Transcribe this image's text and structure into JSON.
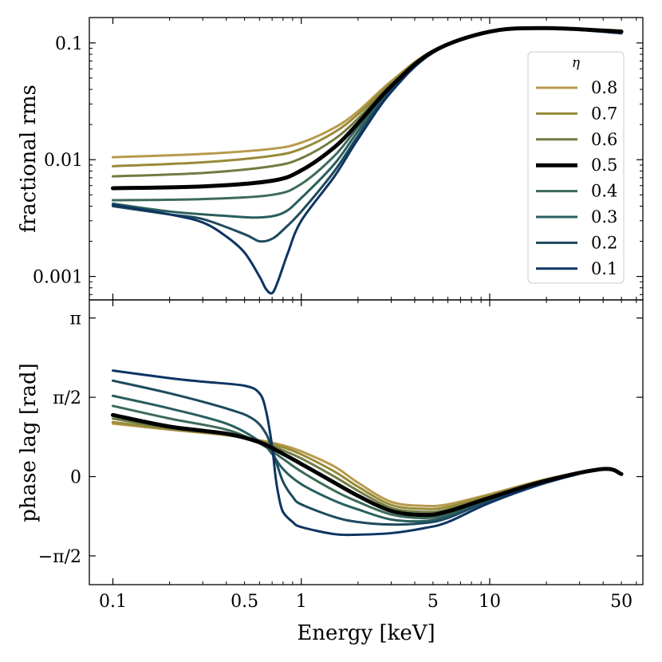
{
  "chart_data": [
    {
      "type": "line",
      "panel": "top",
      "xscale": "log",
      "yscale": "log",
      "xlim": [
        0.075,
        65
      ],
      "ylim": [
        0.00063,
        0.165
      ],
      "ylabel": "fractional rms",
      "yticks": [
        {
          "value": 0.001,
          "label": "0.001"
        },
        {
          "value": 0.01,
          "label": "0.01"
        },
        {
          "value": 0.1,
          "label": "0.1"
        }
      ],
      "legend": {
        "title": "η",
        "position": "right"
      },
      "series": [
        {
          "name": "0.8",
          "color": "#b89a4c",
          "x": [
            0.1,
            0.3,
            0.7,
            1,
            1.5,
            2,
            3,
            5,
            10,
            20,
            50
          ],
          "y": [
            0.0105,
            0.0112,
            0.0124,
            0.014,
            0.0188,
            0.026,
            0.047,
            0.086,
            0.125,
            0.134,
            0.128
          ]
        },
        {
          "name": "0.7",
          "color": "#988a38",
          "x": [
            0.1,
            0.3,
            0.7,
            1,
            1.5,
            2,
            3,
            5,
            10,
            20,
            50
          ],
          "y": [
            0.0088,
            0.0095,
            0.0108,
            0.0124,
            0.0172,
            0.0245,
            0.0455,
            0.0855,
            0.125,
            0.134,
            0.127
          ]
        },
        {
          "name": "0.6",
          "color": "#707c42",
          "x": [
            0.1,
            0.3,
            0.7,
            1,
            1.5,
            2,
            3,
            5,
            10,
            20,
            50
          ],
          "y": [
            0.0072,
            0.0077,
            0.0088,
            0.0103,
            0.015,
            0.0225,
            0.044,
            0.085,
            0.125,
            0.134,
            0.126
          ]
        },
        {
          "name": "0.5",
          "color": "#000000",
          "x": [
            0.1,
            0.3,
            0.7,
            1,
            1.5,
            2,
            3,
            5,
            10,
            20,
            50
          ],
          "y": [
            0.0057,
            0.0059,
            0.0066,
            0.0081,
            0.0128,
            0.0205,
            0.0425,
            0.0845,
            0.125,
            0.134,
            0.125
          ]
        },
        {
          "name": "0.4",
          "color": "#3c6a5a",
          "x": [
            0.1,
            0.3,
            0.7,
            1,
            1.5,
            2,
            3,
            5,
            10,
            20,
            50
          ],
          "y": [
            0.0045,
            0.0046,
            0.005,
            0.0062,
            0.0108,
            0.019,
            0.041,
            0.084,
            0.125,
            0.134,
            0.124
          ]
        },
        {
          "name": "0.3",
          "color": "#2a5e5e",
          "x": [
            0.1,
            0.2,
            0.4,
            0.6,
            0.8,
            1,
            1.5,
            2,
            3,
            5,
            10,
            20,
            50
          ],
          "y": [
            0.0042,
            0.0036,
            0.0033,
            0.0032,
            0.0035,
            0.0047,
            0.0092,
            0.0175,
            0.04,
            0.0835,
            0.125,
            0.134,
            0.123
          ]
        },
        {
          "name": "0.2",
          "color": "#1d4a5e",
          "x": [
            0.1,
            0.2,
            0.3,
            0.5,
            0.6,
            0.7,
            0.8,
            1,
            1.5,
            2,
            3,
            5,
            10,
            20,
            50
          ],
          "y": [
            0.004,
            0.0034,
            0.0031,
            0.0023,
            0.002,
            0.0021,
            0.0025,
            0.0036,
            0.008,
            0.016,
            0.039,
            0.083,
            0.125,
            0.134,
            0.122
          ]
        },
        {
          "name": "0.1",
          "color": "#0e3462",
          "x": [
            0.1,
            0.2,
            0.3,
            0.4,
            0.5,
            0.6,
            0.65,
            0.7,
            0.75,
            0.85,
            1,
            1.5,
            2,
            3,
            5,
            10,
            20,
            50
          ],
          "y": [
            0.0041,
            0.0034,
            0.0029,
            0.0022,
            0.0016,
            0.001,
            0.00078,
            0.00072,
            0.0009,
            0.0016,
            0.003,
            0.0072,
            0.015,
            0.038,
            0.0825,
            0.125,
            0.134,
            0.121
          ]
        }
      ]
    },
    {
      "type": "line",
      "panel": "bottom",
      "xscale": "log",
      "yscale": "linear",
      "xlim": [
        0.075,
        65
      ],
      "ylim": [
        -2.14,
        3.5
      ],
      "xlabel": "Energy [keV]",
      "ylabel": "phase lag [rad]",
      "xticks": [
        {
          "value": 0.1,
          "label": "0.1"
        },
        {
          "value": 0.5,
          "label": "0.5"
        },
        {
          "value": 1,
          "label": "1"
        },
        {
          "value": 5,
          "label": "5"
        },
        {
          "value": 10,
          "label": "10"
        },
        {
          "value": 50,
          "label": "50"
        }
      ],
      "yticks": [
        {
          "value": -1.5708,
          "label": "−π/2"
        },
        {
          "value": 0,
          "label": "0"
        },
        {
          "value": 1.5708,
          "label": "π/2"
        },
        {
          "value": 3.1416,
          "label": "π"
        }
      ],
      "series": [
        {
          "name": "0.8",
          "color": "#b89a4c",
          "x": [
            0.1,
            0.2,
            0.4,
            0.6,
            0.8,
            1,
            1.5,
            2,
            3,
            4.5,
            6,
            10,
            20,
            40,
            50
          ],
          "y": [
            1.05,
            0.93,
            0.82,
            0.72,
            0.62,
            0.5,
            0.2,
            -0.12,
            -0.5,
            -0.58,
            -0.55,
            -0.35,
            -0.05,
            0.15,
            0.05
          ]
        },
        {
          "name": "0.7",
          "color": "#988a38",
          "x": [
            0.1,
            0.2,
            0.4,
            0.6,
            0.8,
            1,
            1.5,
            2,
            3,
            4.5,
            6,
            10,
            20,
            40,
            50
          ],
          "y": [
            1.08,
            0.94,
            0.83,
            0.71,
            0.58,
            0.44,
            0.1,
            -0.2,
            -0.56,
            -0.64,
            -0.6,
            -0.37,
            -0.06,
            0.15,
            0.05
          ]
        },
        {
          "name": "0.6",
          "color": "#707c42",
          "x": [
            0.1,
            0.2,
            0.4,
            0.6,
            0.8,
            1,
            1.5,
            2,
            3,
            4.5,
            6,
            10,
            20,
            40,
            50
          ],
          "y": [
            1.15,
            0.96,
            0.84,
            0.7,
            0.52,
            0.36,
            0.0,
            -0.28,
            -0.62,
            -0.7,
            -0.65,
            -0.4,
            -0.07,
            0.15,
            0.05
          ]
        },
        {
          "name": "0.5",
          "color": "#000000",
          "x": [
            0.1,
            0.2,
            0.4,
            0.6,
            0.8,
            1,
            1.5,
            2,
            3,
            4.5,
            6,
            10,
            20,
            40,
            50
          ],
          "y": [
            1.22,
            0.99,
            0.85,
            0.68,
            0.45,
            0.25,
            -0.12,
            -0.38,
            -0.68,
            -0.76,
            -0.69,
            -0.42,
            -0.08,
            0.15,
            0.05
          ]
        },
        {
          "name": "0.4",
          "color": "#3c6a5a",
          "x": [
            0.1,
            0.2,
            0.4,
            0.6,
            0.8,
            1,
            1.5,
            2,
            3,
            4.5,
            6,
            10,
            20,
            40,
            50
          ],
          "y": [
            1.4,
            1.15,
            0.93,
            0.66,
            0.35,
            0.1,
            -0.28,
            -0.5,
            -0.75,
            -0.82,
            -0.74,
            -0.44,
            -0.09,
            0.15,
            0.05
          ]
        },
        {
          "name": "0.3",
          "color": "#2a5e5e",
          "x": [
            0.1,
            0.2,
            0.4,
            0.6,
            0.7,
            0.8,
            1,
            1.5,
            2,
            3,
            4.5,
            6,
            10,
            20,
            40,
            50
          ],
          "y": [
            1.6,
            1.35,
            1.05,
            0.7,
            0.45,
            0.15,
            -0.15,
            -0.48,
            -0.65,
            -0.85,
            -0.88,
            -0.78,
            -0.46,
            -0.1,
            0.15,
            0.05
          ]
        },
        {
          "name": "0.2",
          "color": "#1d4a5e",
          "x": [
            0.1,
            0.2,
            0.4,
            0.55,
            0.65,
            0.72,
            0.8,
            0.9,
            1,
            1.5,
            2,
            3,
            4.5,
            6,
            10,
            20,
            40,
            50
          ],
          "y": [
            1.9,
            1.65,
            1.35,
            1.15,
            0.85,
            0.4,
            -0.1,
            -0.4,
            -0.55,
            -0.8,
            -0.9,
            -0.95,
            -0.92,
            -0.82,
            -0.48,
            -0.11,
            0.15,
            0.05
          ]
        },
        {
          "name": "0.1",
          "color": "#0e3462",
          "x": [
            0.1,
            0.2,
            0.3,
            0.5,
            0.6,
            0.65,
            0.7,
            0.73,
            0.76,
            0.8,
            0.9,
            1,
            1.5,
            2,
            3,
            4.5,
            6,
            10,
            20,
            40,
            50
          ],
          "y": [
            2.1,
            1.95,
            1.88,
            1.8,
            1.65,
            1.3,
            0.6,
            0.0,
            -0.4,
            -0.7,
            -0.9,
            -1.0,
            -1.14,
            -1.15,
            -1.12,
            -1.02,
            -0.9,
            -0.52,
            -0.12,
            0.15,
            0.05
          ]
        }
      ]
    }
  ]
}
